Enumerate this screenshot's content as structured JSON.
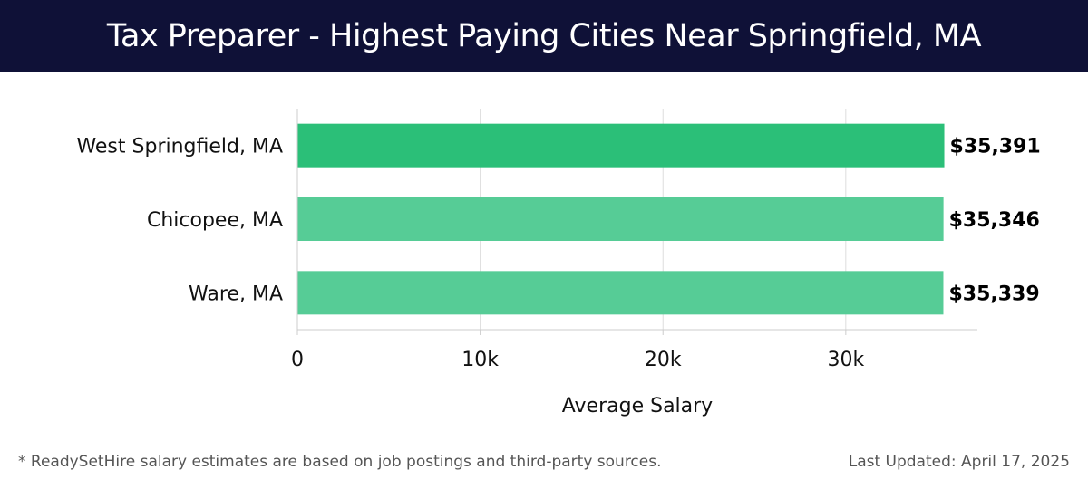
{
  "header": {
    "title": "Tax Preparer - Highest Paying Cities Near Springfield, MA"
  },
  "chart_data": {
    "type": "bar",
    "orientation": "horizontal",
    "categories": [
      "West Springfield, MA",
      "Chicopee, MA",
      "Ware, MA"
    ],
    "values": [
      35391,
      35346,
      35339
    ],
    "value_labels": [
      "$35,391",
      "$35,346",
      "$35,339"
    ],
    "xlabel": "Average Salary",
    "ylabel": "",
    "xlim": [
      0,
      37200
    ],
    "x_ticks": [
      0,
      10000,
      20000,
      30000
    ],
    "x_tick_labels": [
      "0",
      "10k",
      "20k",
      "30k"
    ],
    "grid": true,
    "colors": {
      "highlight": "#2bbf78",
      "bar": "#56cc96"
    }
  },
  "footer": {
    "note": "* ReadySetHire salary estimates are based on job postings and third-party sources.",
    "updated": "Last Updated: April 17, 2025"
  }
}
